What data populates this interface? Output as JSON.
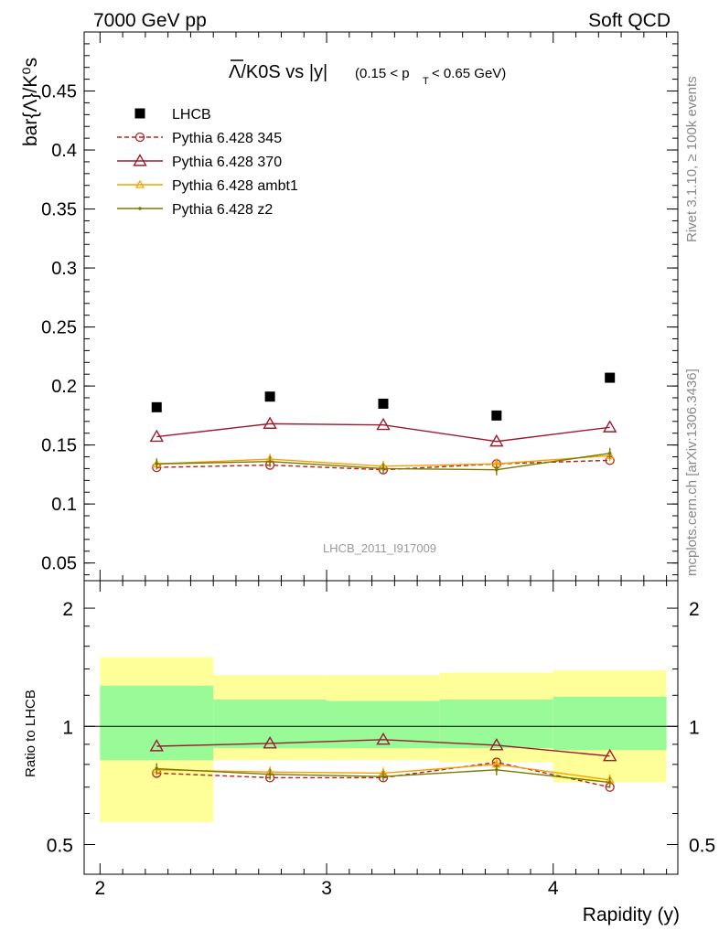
{
  "header": {
    "left": "7000 GeV pp",
    "right": "Soft QCD"
  },
  "side_labels": {
    "rivet": "Rivet 3.1.10, ≥ 100k events",
    "mcplots": "mcplots.cern.ch [arXiv:1306.3436]"
  },
  "plot": {
    "title_main": "Λ/K0S vs |y|",
    "title_cut_pre": "(0.15 < p",
    "title_cut_sub": "T",
    "title_cut_post": " < 0.65 GeV)",
    "analysis_id": "LHCB_2011_I917009"
  },
  "colors": {
    "lhcb": "#000000",
    "p345": "#b22222",
    "p370": "#9b1b30",
    "ambt1": "#f5a000",
    "z2": "#7a7a00",
    "band_inner": "#98fb98",
    "band_outer": "#ffff99"
  },
  "chart_data": [
    {
      "type": "scatter",
      "ylabel": "bar{Λ}/K⁰s",
      "xlim": [
        1.93,
        4.55
      ],
      "ylim": [
        0.035,
        0.5
      ],
      "yticks": [
        0.05,
        0.1,
        0.15,
        0.2,
        0.25,
        0.3,
        0.35,
        0.4,
        0.45
      ],
      "ytick_labels": [
        "0.05",
        "0.1",
        "0.15",
        "0.2",
        "0.25",
        "0.3",
        "0.35",
        "0.4",
        "0.45"
      ],
      "x": [
        2.25,
        2.75,
        3.25,
        3.75,
        4.25
      ],
      "legend_position": "top-left",
      "series": [
        {
          "name": "LHCB",
          "key": "lhcb",
          "marker": "square",
          "line": "none",
          "values": [
            0.182,
            0.191,
            0.185,
            0.175,
            0.207
          ]
        },
        {
          "name": "Pythia 6.428 345",
          "key": "p345",
          "marker": "open-circle",
          "line": "dashed",
          "values": [
            0.131,
            0.133,
            0.129,
            0.134,
            0.137
          ]
        },
        {
          "name": "Pythia 6.428 370",
          "key": "p370",
          "marker": "open-triangle",
          "line": "solid",
          "values": [
            0.157,
            0.168,
            0.167,
            0.153,
            0.165
          ]
        },
        {
          "name": "Pythia 6.428 ambt1",
          "key": "ambt1",
          "marker": "small-triangle",
          "line": "solid",
          "values": [
            0.134,
            0.138,
            0.132,
            0.134,
            0.141
          ]
        },
        {
          "name": "Pythia 6.428 z2",
          "key": "z2",
          "marker": "dot",
          "line": "solid",
          "values": [
            0.134,
            0.136,
            0.13,
            0.129,
            0.143
          ]
        }
      ]
    },
    {
      "type": "line",
      "ylabel": "Ratio to LHCB",
      "xlabel": "Rapidity (y)",
      "xlim": [
        1.93,
        4.55
      ],
      "ylim": [
        0.42,
        2.35
      ],
      "log_y": true,
      "yticks": [
        0.5,
        1,
        2
      ],
      "ytick_labels": [
        "0.5",
        "1",
        "2"
      ],
      "xticks": [
        2,
        3,
        4
      ],
      "xtick_labels": [
        "2",
        "3",
        "4"
      ],
      "x": [
        2.25,
        2.75,
        3.25,
        3.75,
        4.25
      ],
      "bands": [
        {
          "x_low": 2.0,
          "x_high": 2.5,
          "inner": [
            0.82,
            1.27
          ],
          "outer": [
            0.57,
            1.5
          ]
        },
        {
          "x_low": 2.5,
          "x_high": 3.0,
          "inner": [
            0.88,
            1.17
          ],
          "outer": [
            0.82,
            1.35
          ]
        },
        {
          "x_low": 3.0,
          "x_high": 3.5,
          "inner": [
            0.88,
            1.16
          ],
          "outer": [
            0.82,
            1.35
          ]
        },
        {
          "x_low": 3.5,
          "x_high": 4.0,
          "inner": [
            0.88,
            1.17
          ],
          "outer": [
            0.81,
            1.37
          ]
        },
        {
          "x_low": 4.0,
          "x_high": 4.5,
          "inner": [
            0.87,
            1.19
          ],
          "outer": [
            0.72,
            1.39
          ]
        }
      ],
      "series": [
        {
          "name": "Pythia 6.428 345",
          "key": "p345",
          "marker": "open-circle",
          "line": "dashed",
          "values": [
            0.76,
            0.74,
            0.74,
            0.81,
            0.7
          ]
        },
        {
          "name": "Pythia 6.428 370",
          "key": "p370",
          "marker": "open-triangle",
          "line": "solid",
          "values": [
            0.89,
            0.905,
            0.925,
            0.895,
            0.84
          ]
        },
        {
          "name": "Pythia 6.428 ambt1",
          "key": "ambt1",
          "marker": "small-triangle",
          "line": "solid",
          "values": [
            0.775,
            0.765,
            0.76,
            0.8,
            0.73
          ]
        },
        {
          "name": "Pythia 6.428 z2",
          "key": "z2",
          "marker": "dot",
          "line": "solid",
          "values": [
            0.78,
            0.755,
            0.745,
            0.775,
            0.72
          ]
        }
      ]
    }
  ]
}
